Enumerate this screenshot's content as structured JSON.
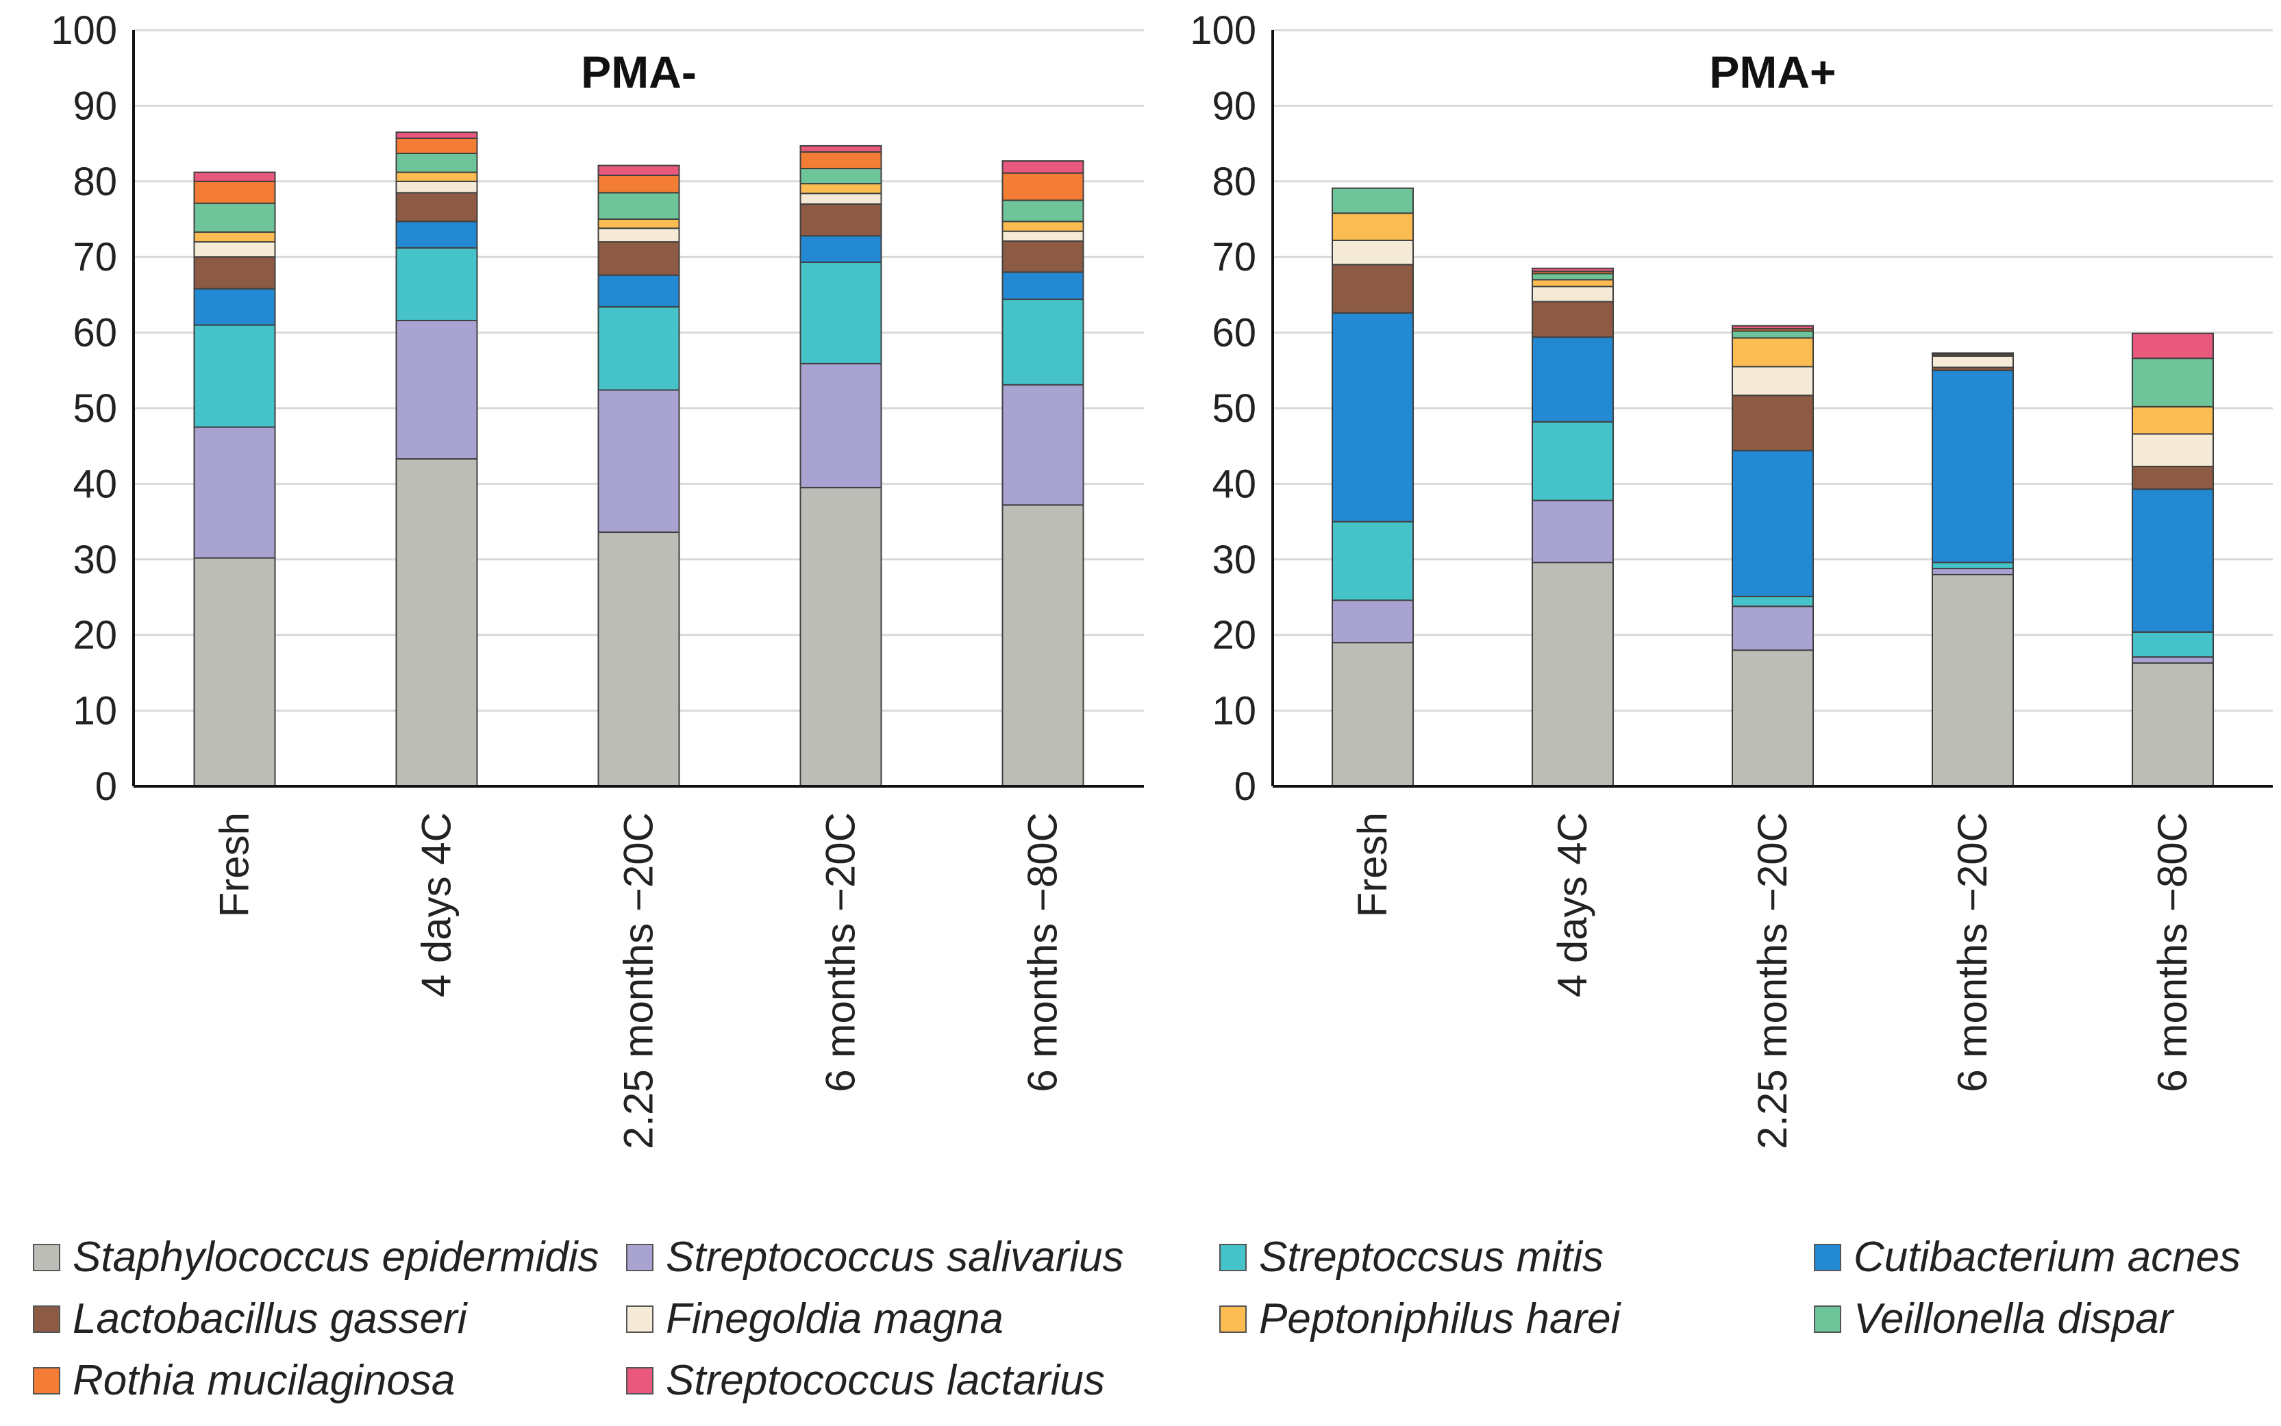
{
  "chart_data": {
    "type": "bar",
    "stacked": true,
    "categories": [
      "Fresh",
      "4 days 4C",
      "2.25 months −20C",
      "6 months −20C",
      "6 months −80C"
    ],
    "ylim": [
      0,
      100
    ],
    "yticks": [
      0,
      10,
      20,
      30,
      40,
      50,
      60,
      70,
      80,
      90,
      100
    ],
    "series_names": [
      "Staphylococcus epidermidis",
      "Streptococcus salivarius",
      "Streptoccsus mitis",
      "Cutibacterium acnes",
      "Lactobacillus gasseri",
      "Finegoldia magna",
      "Peptoniphilus harei",
      "Veillonella dispar",
      "Rothia mucilaginosa",
      "Streptococcus lactarius"
    ],
    "colors": [
      "#bdbdb8",
      "#a9a3d2",
      "#45c3c8",
      "#2389d2",
      "#8d5a44",
      "#f5ead6",
      "#fbbc52",
      "#6fc59a",
      "#f47d35",
      "#e8597d"
    ],
    "panels": [
      {
        "title": "PMA-",
        "series": [
          {
            "name": "Staphylococcus epidermidis",
            "values": [
              30.2,
              43.3,
              33.6,
              39.5,
              37.2
            ]
          },
          {
            "name": "Streptococcus salivarius",
            "values": [
              17.3,
              18.3,
              18.8,
              16.4,
              15.9
            ]
          },
          {
            "name": "Streptoccsus mitis",
            "values": [
              13.5,
              9.6,
              11.0,
              13.4,
              11.3
            ]
          },
          {
            "name": "Cutibacterium acnes",
            "values": [
              4.8,
              3.5,
              4.2,
              3.5,
              3.6
            ]
          },
          {
            "name": "Lactobacillus gasseri",
            "values": [
              4.2,
              3.8,
              4.4,
              4.2,
              4.1
            ]
          },
          {
            "name": "Finegoldia magna",
            "values": [
              2.0,
              1.5,
              1.8,
              1.4,
              1.3
            ]
          },
          {
            "name": "Peptoniphilus harei",
            "values": [
              1.3,
              1.2,
              1.2,
              1.3,
              1.3
            ]
          },
          {
            "name": "Veillonella dispar",
            "values": [
              3.8,
              2.5,
              3.5,
              2.0,
              2.8
            ]
          },
          {
            "name": "Rothia mucilaginosa",
            "values": [
              2.9,
              2.0,
              2.3,
              2.2,
              3.6
            ]
          },
          {
            "name": "Streptococcus lactarius",
            "values": [
              1.2,
              0.8,
              1.3,
              0.8,
              1.6
            ]
          }
        ]
      },
      {
        "title": "PMA+",
        "series": [
          {
            "name": "Staphylococcus epidermidis",
            "values": [
              19.0,
              29.6,
              18.0,
              28.0,
              16.3
            ]
          },
          {
            "name": "Streptococcus salivarius",
            "values": [
              5.6,
              8.2,
              5.8,
              0.8,
              0.8
            ]
          },
          {
            "name": "Streptoccsus mitis",
            "values": [
              10.4,
              10.4,
              1.3,
              0.8,
              3.3
            ]
          },
          {
            "name": "Cutibacterium acnes",
            "values": [
              27.6,
              11.2,
              19.3,
              25.4,
              18.9
            ]
          },
          {
            "name": "Lactobacillus gasseri",
            "values": [
              6.4,
              4.7,
              7.3,
              0.4,
              3.0
            ]
          },
          {
            "name": "Finegoldia magna",
            "values": [
              3.2,
              2.0,
              3.8,
              1.5,
              4.3
            ]
          },
          {
            "name": "Peptoniphilus harei",
            "values": [
              3.6,
              0.9,
              3.8,
              0.2,
              3.6
            ]
          },
          {
            "name": "Veillonella dispar",
            "values": [
              3.3,
              0.8,
              0.9,
              0.1,
              6.4
            ]
          },
          {
            "name": "Rothia mucilaginosa",
            "values": [
              0.0,
              0.3,
              0.3,
              0.0,
              0.0
            ]
          },
          {
            "name": "Streptococcus lactarius",
            "values": [
              0.0,
              0.4,
              0.4,
              0.1,
              3.3
            ]
          }
        ]
      }
    ]
  },
  "legend": {
    "items": [
      "Staphylococcus epidermidis",
      "Streptococcus salivarius",
      "Streptoccsus mitis",
      "Cutibacterium acnes",
      "Lactobacillus gasseri",
      "Finegoldia magna",
      "Peptoniphilus harei",
      "Veillonella dispar",
      "Rothia mucilaginosa",
      "Streptococcus lactarius"
    ]
  }
}
